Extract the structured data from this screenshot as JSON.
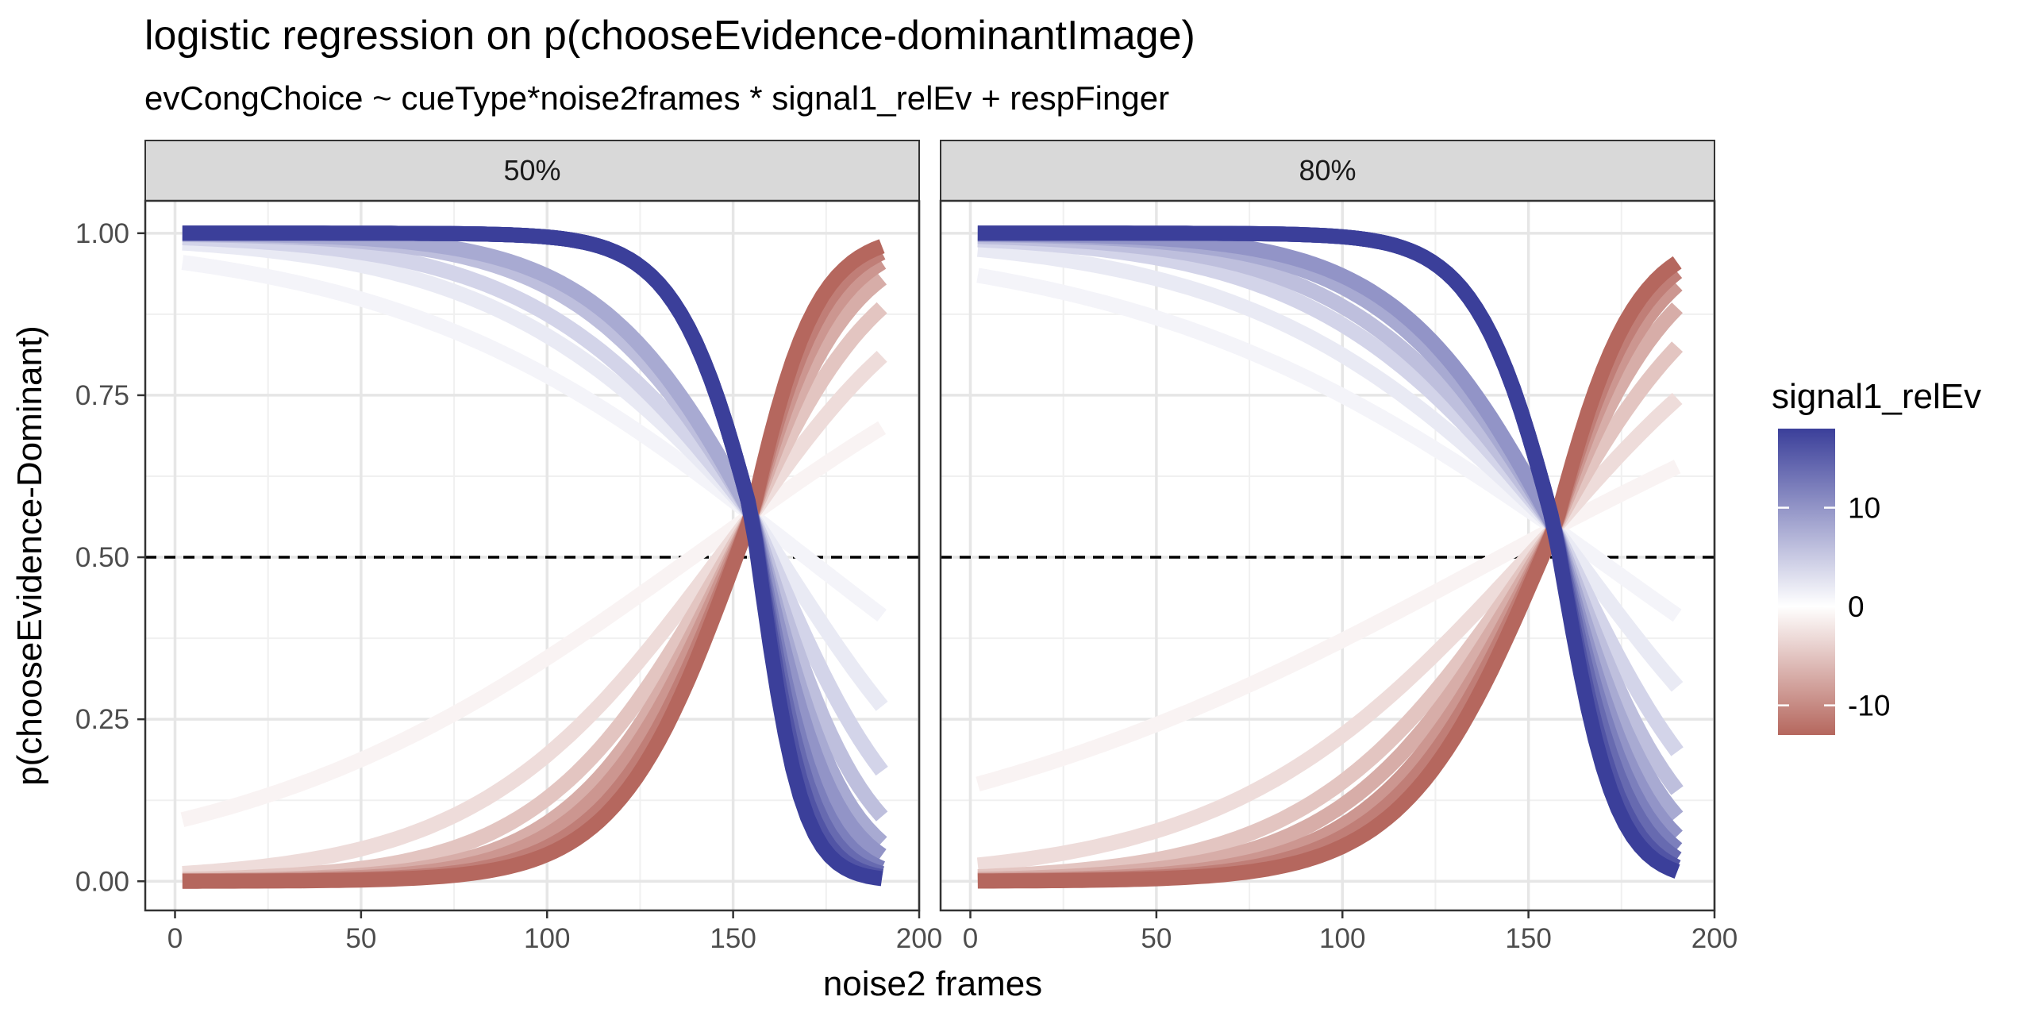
{
  "chart_data": {
    "type": "line",
    "title": "logistic regression on p(chooseEvidence-dominantImage)",
    "subtitle": "evCongChoice ~ cueType*noise2frames * signal1_relEv + respFinger",
    "xlabel": "noise2 frames",
    "ylabel": "p(chooseEvidence-Dominant)",
    "xlim": [
      -8,
      200
    ],
    "ylim": [
      -0.045,
      1.05
    ],
    "xticks": [
      0,
      50,
      100,
      150,
      200
    ],
    "xtick_labels": [
      "0",
      "50",
      "100",
      "150",
      "200"
    ],
    "yticks": [
      0,
      0.25,
      0.5,
      0.75,
      1.0
    ],
    "ytick_labels": [
      "0.00",
      "0.25",
      "0.50",
      "0.75",
      "1.00"
    ],
    "reference_line": {
      "y": 0.5,
      "style": "dashed"
    },
    "grid": true,
    "legend": {
      "title": "signal1_relEv",
      "position": "right",
      "type": "colorbar",
      "range": [
        -13,
        18
      ],
      "ticks": [
        10,
        0,
        -10
      ],
      "tick_labels": [
        "10",
        "0",
        "-10"
      ],
      "colors": {
        "high": "#3b3f9a",
        "mid": "#ffffff",
        "low": "#b5675e"
      }
    },
    "x_range": [
      2,
      190
    ],
    "panels": [
      {
        "label": "50%",
        "crossover_x": 155,
        "crossover_p": 0.565,
        "series": [
          {
            "relEv": 18,
            "p_start": 1.0,
            "p_end": 0.004
          },
          {
            "relEv": 16,
            "p_start": 1.0,
            "p_end": 0.007
          },
          {
            "relEv": 14,
            "p_start": 1.0,
            "p_end": 0.012
          },
          {
            "relEv": 12,
            "p_start": 1.0,
            "p_end": 0.02
          },
          {
            "relEv": 10,
            "p_start": 1.0,
            "p_end": 0.04
          },
          {
            "relEv": 8,
            "p_start": 0.999,
            "p_end": 0.06
          },
          {
            "relEv": 6,
            "p_start": 0.998,
            "p_end": 0.1
          },
          {
            "relEv": 4,
            "p_start": 0.993,
            "p_end": 0.17
          },
          {
            "relEv": 2,
            "p_start": 0.985,
            "p_end": 0.27
          },
          {
            "relEv": 1,
            "p_start": 0.955,
            "p_end": 0.41
          },
          {
            "relEv": -1,
            "p_start": 0.095,
            "p_end": 0.7
          },
          {
            "relEv": -3,
            "p_start": 0.012,
            "p_end": 0.81
          },
          {
            "relEv": -5,
            "p_start": 0.003,
            "p_end": 0.885
          },
          {
            "relEv": -7,
            "p_start": 0.001,
            "p_end": 0.93
          },
          {
            "relEv": -9,
            "p_start": 0.0005,
            "p_end": 0.955
          },
          {
            "relEv": -11,
            "p_start": 0.0002,
            "p_end": 0.97
          },
          {
            "relEv": -13,
            "p_start": 0.0001,
            "p_end": 0.98
          }
        ]
      },
      {
        "label": "80%",
        "crossover_x": 157,
        "crossover_p": 0.545,
        "series": [
          {
            "relEv": 18,
            "p_start": 1.0,
            "p_end": 0.015
          },
          {
            "relEv": 16,
            "p_start": 1.0,
            "p_end": 0.022
          },
          {
            "relEv": 14,
            "p_start": 1.0,
            "p_end": 0.035
          },
          {
            "relEv": 12,
            "p_start": 1.0,
            "p_end": 0.05
          },
          {
            "relEv": 10,
            "p_start": 0.999,
            "p_end": 0.07
          },
          {
            "relEv": 8,
            "p_start": 0.998,
            "p_end": 0.1
          },
          {
            "relEv": 6,
            "p_start": 0.995,
            "p_end": 0.14
          },
          {
            "relEv": 4,
            "p_start": 0.99,
            "p_end": 0.2
          },
          {
            "relEv": 2,
            "p_start": 0.975,
            "p_end": 0.3
          },
          {
            "relEv": 1,
            "p_start": 0.935,
            "p_end": 0.41
          },
          {
            "relEv": -1,
            "p_start": 0.15,
            "p_end": 0.64
          },
          {
            "relEv": -3,
            "p_start": 0.025,
            "p_end": 0.745
          },
          {
            "relEv": -5,
            "p_start": 0.007,
            "p_end": 0.825
          },
          {
            "relEv": -7,
            "p_start": 0.003,
            "p_end": 0.885
          },
          {
            "relEv": -9,
            "p_start": 0.0012,
            "p_end": 0.92
          },
          {
            "relEv": -11,
            "p_start": 0.0006,
            "p_end": 0.94
          },
          {
            "relEv": -13,
            "p_start": 0.0003,
            "p_end": 0.955
          }
        ]
      }
    ]
  }
}
